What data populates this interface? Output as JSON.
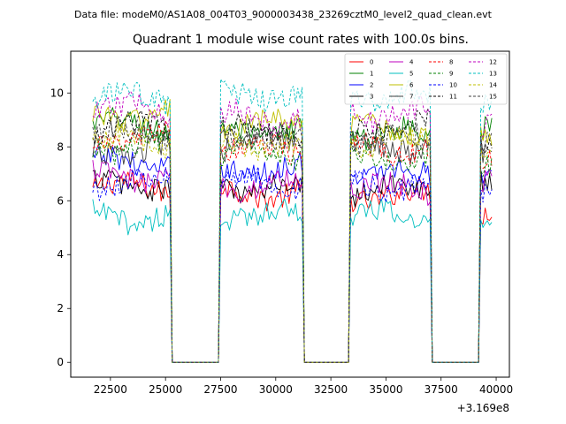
{
  "figure": {
    "suptitle": "Data file: modeM0/AS1A08_004T03_9000003438_23269cztM0_level2_quad_clean.evt",
    "offset_text": "+3.169e8"
  },
  "chart_data": {
    "type": "line",
    "title": "Quadrant 1 module wise count rates with 100.0s bins.",
    "xlabel": "",
    "ylabel": "",
    "xlim": [
      20700,
      40600
    ],
    "ylim": [
      -0.55,
      11.55
    ],
    "x_offset": 316900000,
    "xticks": [
      22500,
      25000,
      27500,
      30000,
      32500,
      35000,
      37500,
      40000
    ],
    "xtick_labels": [
      "22500",
      "25000",
      "27500",
      "30000",
      "32500",
      "35000",
      "37500",
      "40000"
    ],
    "yticks": [
      0,
      2,
      4,
      6,
      8,
      10
    ],
    "ytick_labels": [
      "0",
      "2",
      "4",
      "6",
      "8",
      "10"
    ],
    "legend": {
      "location": "upper right",
      "columns": 4
    },
    "bin_size_s": 100,
    "segments": [
      {
        "start": 21700,
        "end": 25200
      },
      {
        "start": 27500,
        "end": 31200
      },
      {
        "start": 33400,
        "end": 37000
      },
      {
        "start": 39300,
        "end": 39800
      }
    ],
    "gaps": [
      {
        "start": 25300,
        "end": 27400,
        "value": 0
      },
      {
        "start": 31300,
        "end": 33300,
        "value": 0
      },
      {
        "start": 37100,
        "end": 39200,
        "value": 0
      }
    ],
    "series": [
      {
        "name": "0",
        "color": "#ff0000",
        "dashed": false,
        "levels": [
          6.5,
          6.3,
          6.2,
          5.6
        ]
      },
      {
        "name": "1",
        "color": "#008000",
        "dashed": false,
        "levels": [
          8.8,
          8.6,
          8.5,
          8.6
        ]
      },
      {
        "name": "2",
        "color": "#0000ff",
        "dashed": false,
        "levels": [
          7.4,
          7.2,
          7.0,
          6.9
        ]
      },
      {
        "name": "3",
        "color": "#000000",
        "dashed": false,
        "levels": [
          6.6,
          6.5,
          6.4,
          6.5
        ]
      },
      {
        "name": "4",
        "color": "#bf00bf",
        "dashed": false,
        "levels": [
          6.9,
          6.6,
          6.5,
          6.5
        ]
      },
      {
        "name": "5",
        "color": "#00bfbf",
        "dashed": false,
        "levels": [
          5.4,
          5.5,
          5.4,
          5.2
        ]
      },
      {
        "name": "6",
        "color": "#bfbf00",
        "dashed": false,
        "levels": [
          9.2,
          8.8,
          8.6,
          8.5
        ]
      },
      {
        "name": "7",
        "color": "#404040",
        "dashed": false,
        "levels": [
          7.9,
          8.1,
          8.0,
          7.8
        ]
      },
      {
        "name": "8",
        "color": "#ff0000",
        "dashed": true,
        "levels": [
          8.3,
          7.9,
          7.9,
          7.7
        ]
      },
      {
        "name": "9",
        "color": "#008000",
        "dashed": true,
        "levels": [
          8.0,
          7.8,
          7.6,
          7.5
        ]
      },
      {
        "name": "10",
        "color": "#0000ff",
        "dashed": true,
        "levels": [
          6.7,
          6.7,
          6.6,
          6.6
        ]
      },
      {
        "name": "11",
        "color": "#000000",
        "dashed": true,
        "levels": [
          8.7,
          8.6,
          8.8,
          8.4
        ]
      },
      {
        "name": "12",
        "color": "#bf00bf",
        "dashed": true,
        "levels": [
          9.4,
          9.1,
          9.2,
          9.0
        ]
      },
      {
        "name": "13",
        "color": "#00bfbf",
        "dashed": true,
        "levels": [
          9.8,
          9.9,
          9.9,
          9.8
        ]
      },
      {
        "name": "14",
        "color": "#bfbf00",
        "dashed": true,
        "levels": [
          8.2,
          8.1,
          8.2,
          8.0
        ]
      },
      {
        "name": "15",
        "color": "#404040",
        "dashed": true,
        "levels": [
          8.5,
          8.4,
          8.3,
          8.1
        ]
      }
    ]
  }
}
